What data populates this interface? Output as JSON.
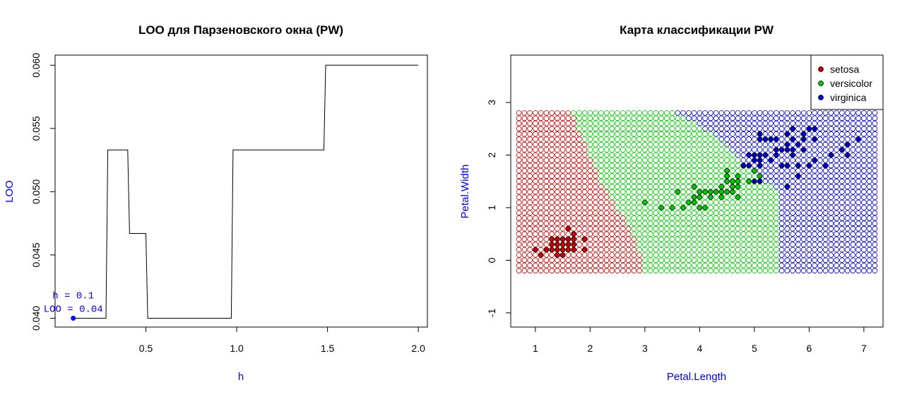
{
  "chart_data": [
    {
      "type": "line",
      "title": "LOO для Парзеновского окна (PW)",
      "xlabel": "h",
      "ylabel": "LOO",
      "xlim": [
        0.0,
        2.05
      ],
      "ylim": [
        0.0393,
        0.0608
      ],
      "xticks": [
        0.5,
        1.0,
        1.5,
        2.0
      ],
      "xtick_labels": [
        "0.5",
        "1.0",
        "1.5",
        "2.0"
      ],
      "yticks": [
        0.04,
        0.045,
        0.05,
        0.055,
        0.06
      ],
      "ytick_labels": [
        "0.040",
        "0.045",
        "0.050",
        "0.055",
        "0.060"
      ],
      "x": [
        0.1,
        0.28,
        0.29,
        0.4,
        0.41,
        0.5,
        0.51,
        0.97,
        0.98,
        1.48,
        1.49,
        2.0
      ],
      "y": [
        0.04,
        0.04,
        0.0533,
        0.0533,
        0.0467,
        0.0467,
        0.04,
        0.04,
        0.0533,
        0.0533,
        0.06,
        0.06
      ],
      "step_pairs": [
        [
          0.1,
          0.04
        ],
        [
          0.29,
          0.0533
        ],
        [
          0.41,
          0.0467
        ],
        [
          0.51,
          0.04
        ],
        [
          0.98,
          0.0533
        ],
        [
          1.49,
          0.06
        ],
        [
          2.0,
          0.06
        ]
      ],
      "annotations": {
        "point": {
          "x": 0.1,
          "y": 0.04
        },
        "line1": "h = 0.1",
        "line2": "LOO = 0.04"
      },
      "colors": {
        "line": "#000000",
        "annotation": "#0000ff"
      }
    },
    {
      "type": "scatter",
      "title": "Карта классификации PW",
      "xlabel": "Petal.Length",
      "ylabel": "Petal.Width",
      "xlim": [
        0.55,
        7.35
      ],
      "ylim": [
        -1.27,
        3.9
      ],
      "xticks": [
        1,
        2,
        3,
        4,
        5,
        6,
        7
      ],
      "xtick_labels": [
        "1",
        "2",
        "3",
        "4",
        "5",
        "6",
        "7"
      ],
      "yticks": [
        -1,
        0,
        1,
        2,
        3
      ],
      "ytick_labels": [
        "-1",
        "0",
        "1",
        "2",
        "3"
      ],
      "legend": {
        "placement": "top-right",
        "entries": [
          {
            "label": "setosa",
            "color": "#cc0000"
          },
          {
            "label": "versicolor",
            "color": "#00cc00"
          },
          {
            "label": "virginica",
            "color": "#0000cc"
          }
        ]
      },
      "grid": {
        "x_start": 0.7,
        "x_end": 7.2,
        "x_step": 0.1,
        "y_start": -0.2,
        "y_end": 2.8,
        "y_step": 0.1,
        "boundary_setosa_versicolor": [
          [
            -0.2,
            3.0
          ],
          [
            0.5,
            2.8
          ],
          [
            1.0,
            2.5
          ],
          [
            1.5,
            2.2
          ],
          [
            2.0,
            2.0
          ],
          [
            2.5,
            1.8
          ],
          [
            2.8,
            1.7
          ]
        ],
        "boundary_versicolor_virginica": [
          [
            -0.2,
            5.5
          ],
          [
            1.3,
            5.5
          ],
          [
            1.5,
            5.2
          ],
          [
            1.8,
            4.9
          ],
          [
            2.2,
            4.5
          ],
          [
            2.5,
            4.1
          ],
          [
            2.8,
            3.6
          ]
        ]
      },
      "series": [
        {
          "name": "setosa",
          "color": "#cc0000",
          "points": [
            [
              1.0,
              0.2
            ],
            [
              1.1,
              0.1
            ],
            [
              1.2,
              0.2
            ],
            [
              1.3,
              0.2
            ],
            [
              1.3,
              0.3
            ],
            [
              1.3,
              0.4
            ],
            [
              1.4,
              0.1
            ],
            [
              1.4,
              0.2
            ],
            [
              1.4,
              0.3
            ],
            [
              1.5,
              0.1
            ],
            [
              1.5,
              0.2
            ],
            [
              1.5,
              0.3
            ],
            [
              1.5,
              0.4
            ],
            [
              1.6,
              0.2
            ],
            [
              1.6,
              0.4
            ],
            [
              1.6,
              0.6
            ],
            [
              1.7,
              0.2
            ],
            [
              1.7,
              0.3
            ],
            [
              1.7,
              0.4
            ],
            [
              1.7,
              0.5
            ],
            [
              1.9,
              0.2
            ],
            [
              1.9,
              0.4
            ],
            [
              1.4,
              0.4
            ],
            [
              1.6,
              0.3
            ]
          ]
        },
        {
          "name": "versicolor",
          "color": "#00cc00",
          "points": [
            [
              3.0,
              1.1
            ],
            [
              3.3,
              1.0
            ],
            [
              3.5,
              1.0
            ],
            [
              3.6,
              1.3
            ],
            [
              3.7,
              1.0
            ],
            [
              3.8,
              1.1
            ],
            [
              3.9,
              1.1
            ],
            [
              3.9,
              1.2
            ],
            [
              3.9,
              1.4
            ],
            [
              4.0,
              1.0
            ],
            [
              4.0,
              1.2
            ],
            [
              4.0,
              1.3
            ],
            [
              4.1,
              1.0
            ],
            [
              4.1,
              1.3
            ],
            [
              4.2,
              1.2
            ],
            [
              4.2,
              1.3
            ],
            [
              4.3,
              1.3
            ],
            [
              4.4,
              1.2
            ],
            [
              4.4,
              1.3
            ],
            [
              4.4,
              1.4
            ],
            [
              4.5,
              1.3
            ],
            [
              4.5,
              1.5
            ],
            [
              4.5,
              1.6
            ],
            [
              4.6,
              1.3
            ],
            [
              4.6,
              1.4
            ],
            [
              4.6,
              1.5
            ],
            [
              4.7,
              1.2
            ],
            [
              4.7,
              1.4
            ],
            [
              4.7,
              1.5
            ],
            [
              4.7,
              1.6
            ],
            [
              4.8,
              1.8
            ],
            [
              4.9,
              1.5
            ],
            [
              5.0,
              1.7
            ],
            [
              5.1,
              1.6
            ],
            [
              4.5,
              1.7
            ]
          ]
        },
        {
          "name": "virginica",
          "color": "#0000cc",
          "points": [
            [
              4.8,
              1.8
            ],
            [
              4.9,
              1.8
            ],
            [
              4.9,
              2.0
            ],
            [
              5.0,
              1.5
            ],
            [
              5.0,
              1.9
            ],
            [
              5.0,
              2.0
            ],
            [
              5.1,
              1.5
            ],
            [
              5.1,
              1.8
            ],
            [
              5.1,
              1.9
            ],
            [
              5.1,
              2.0
            ],
            [
              5.1,
              2.3
            ],
            [
              5.1,
              2.4
            ],
            [
              5.2,
              2.0
            ],
            [
              5.2,
              2.3
            ],
            [
              5.3,
              1.9
            ],
            [
              5.3,
              2.3
            ],
            [
              5.4,
              2.1
            ],
            [
              5.4,
              2.3
            ],
            [
              5.5,
              1.8
            ],
            [
              5.5,
              2.1
            ],
            [
              5.6,
              1.8
            ],
            [
              5.6,
              2.1
            ],
            [
              5.6,
              2.2
            ],
            [
              5.6,
              2.4
            ],
            [
              5.7,
              2.1
            ],
            [
              5.7,
              2.3
            ],
            [
              5.7,
              2.5
            ],
            [
              5.8,
              1.6
            ],
            [
              5.8,
              1.8
            ],
            [
              5.8,
              2.2
            ],
            [
              5.9,
              2.1
            ],
            [
              5.9,
              2.3
            ],
            [
              6.0,
              1.8
            ],
            [
              6.0,
              2.5
            ],
            [
              6.1,
              1.9
            ],
            [
              6.1,
              2.3
            ],
            [
              6.1,
              2.5
            ],
            [
              6.3,
              1.8
            ],
            [
              6.4,
              2.0
            ],
            [
              6.6,
              2.1
            ],
            [
              6.7,
              2.0
            ],
            [
              6.7,
              2.2
            ],
            [
              6.9,
              2.3
            ],
            [
              5.6,
              1.4
            ],
            [
              5.9,
              2.4
            ],
            [
              5.4,
              2.0
            ],
            [
              5.7,
              2.0
            ]
          ]
        }
      ]
    }
  ]
}
